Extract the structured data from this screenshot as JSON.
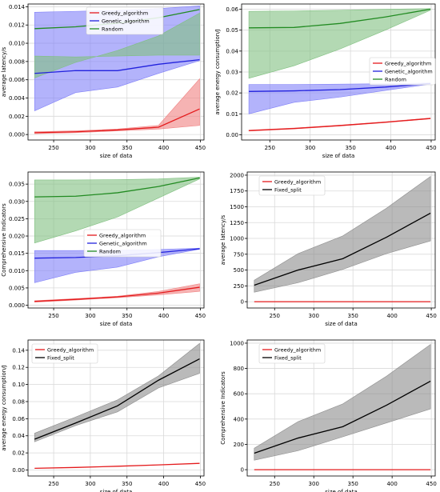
{
  "colors": {
    "greedy": "#e41a1c",
    "genetic": "#2222dd",
    "random": "#228b22",
    "fixed": "#000000",
    "band_greedy": "#f08080",
    "band_genetic": "#8080f8",
    "band_random": "#80c080",
    "band_fixed": "#8c8c8c",
    "grid": "#d9d9d9"
  },
  "chart_data": [
    {
      "type": "line",
      "grid": true,
      "legend": "top-center",
      "xlabel": "size of data",
      "ylabel": "average latency/s",
      "xlim": [
        215,
        455
      ],
      "ylim": [
        -0.0006,
        0.0143
      ],
      "xticks": [
        250,
        300,
        350,
        400,
        450
      ],
      "xtick_labels": [
        "250",
        "300",
        "350",
        "400",
        "450"
      ],
      "yticks": [
        0,
        0.002,
        0.004,
        0.006,
        0.008,
        0.01,
        0.012,
        0.014
      ],
      "ytick_labels": [
        "0.000",
        "0.002",
        "0.004",
        "0.006",
        "0.008",
        "0.010",
        "0.012",
        "0.014"
      ],
      "x": [
        224,
        280,
        337,
        393,
        449
      ],
      "series": [
        {
          "name": "Greedy_algorithm",
          "color_key": "greedy",
          "values": [
            0.0002,
            0.0003,
            0.0005,
            0.0008,
            0.0028
          ],
          "band_low": [
            0.0001,
            0.0002,
            0.0004,
            0.0006,
            0.001
          ],
          "band_high": [
            0.0003,
            0.0004,
            0.0006,
            0.001,
            0.0061
          ]
        },
        {
          "name": "Genetic_algorithm",
          "color_key": "genetic",
          "values": [
            0.0067,
            0.007,
            0.007,
            0.0077,
            0.0082
          ],
          "band_low": [
            0.0026,
            0.0046,
            0.0052,
            0.0067,
            0.0081
          ],
          "band_high": [
            0.0134,
            0.0135,
            0.0136,
            0.0138,
            0.0141
          ]
        },
        {
          "name": "Random",
          "color_key": "random",
          "values": [
            0.0116,
            0.0118,
            0.0122,
            0.0128,
            0.0137
          ],
          "band_low": [
            0.0062,
            0.0079,
            0.0092,
            0.0108,
            0.0133
          ],
          "band_high": [
            0.0086,
            0.0085,
            0.0086,
            0.0087,
            0.0087
          ]
        }
      ]
    },
    {
      "type": "line",
      "grid": true,
      "legend": "center-right",
      "xlabel": "size of data",
      "ylabel": "average energy consumption/J",
      "xlim": [
        215,
        455
      ],
      "ylim": [
        -0.0025,
        0.0625
      ],
      "xticks": [
        250,
        300,
        350,
        400,
        450
      ],
      "xtick_labels": [
        "250",
        "300",
        "350",
        "400",
        "450"
      ],
      "yticks": [
        0,
        0.01,
        0.02,
        0.03,
        0.04,
        0.05,
        0.06
      ],
      "ytick_labels": [
        "0.00",
        "0.01",
        "0.02",
        "0.03",
        "0.04",
        "0.05",
        "0.06"
      ],
      "x": [
        224,
        280,
        337,
        393,
        449
      ],
      "series": [
        {
          "name": "Greedy_algorithm",
          "color_key": "greedy",
          "values": [
            0.002,
            0.003,
            0.0044,
            0.006,
            0.0078
          ],
          "band_low": [
            0.0018,
            0.0028,
            0.0042,
            0.0058,
            0.0076
          ],
          "band_high": [
            0.0022,
            0.0032,
            0.0046,
            0.0062,
            0.008
          ]
        },
        {
          "name": "Genetic_algorithm",
          "color_key": "genetic",
          "values": [
            0.0207,
            0.021,
            0.0216,
            0.0228,
            0.0245
          ],
          "band_low": [
            0.01,
            0.0155,
            0.018,
            0.0212,
            0.0242
          ],
          "band_high": [
            0.024,
            0.024,
            0.0242,
            0.0244,
            0.0247
          ]
        },
        {
          "name": "Random",
          "color_key": "random",
          "values": [
            0.0511,
            0.0513,
            0.0532,
            0.0563,
            0.06
          ],
          "band_low": [
            0.027,
            0.033,
            0.041,
            0.05,
            0.0595
          ],
          "band_high": [
            0.059,
            0.0592,
            0.0595,
            0.06,
            0.0603
          ]
        }
      ]
    },
    {
      "type": "line",
      "grid": true,
      "legend": "center-left",
      "xlabel": "size of data",
      "ylabel": "Comprehensive Indicators",
      "xlim": [
        215,
        455
      ],
      "ylim": [
        -0.0008,
        0.0385
      ],
      "xticks": [
        250,
        300,
        350,
        400,
        450
      ],
      "xtick_labels": [
        "250",
        "300",
        "350",
        "400",
        "450"
      ],
      "yticks": [
        0,
        0.005,
        0.01,
        0.015,
        0.02,
        0.025,
        0.03,
        0.035
      ],
      "ytick_labels": [
        "0.000",
        "0.005",
        "0.010",
        "0.015",
        "0.020",
        "0.025",
        "0.030",
        "0.035"
      ],
      "x": [
        224,
        280,
        337,
        393,
        449
      ],
      "series": [
        {
          "name": "Greedy_algorithm",
          "color_key": "greedy",
          "values": [
            0.0011,
            0.0017,
            0.0024,
            0.0035,
            0.0052
          ],
          "band_low": [
            0.0009,
            0.0015,
            0.0022,
            0.003,
            0.004
          ],
          "band_high": [
            0.0013,
            0.0019,
            0.0026,
            0.004,
            0.0062
          ]
        },
        {
          "name": "Genetic_algorithm",
          "color_key": "genetic",
          "values": [
            0.0136,
            0.0138,
            0.0143,
            0.0152,
            0.0163
          ],
          "band_low": [
            0.0065,
            0.0095,
            0.011,
            0.014,
            0.0162
          ],
          "band_high": [
            0.0158,
            0.0158,
            0.0159,
            0.0161,
            0.0165
          ]
        },
        {
          "name": "Random",
          "color_key": "random",
          "values": [
            0.0313,
            0.0315,
            0.0325,
            0.0343,
            0.0368
          ],
          "band_low": [
            0.018,
            0.0215,
            0.0255,
            0.031,
            0.0365
          ],
          "band_high": [
            0.0362,
            0.0362,
            0.0363,
            0.0365,
            0.037
          ]
        }
      ]
    },
    {
      "type": "line",
      "grid": true,
      "legend": "top-left",
      "xlabel": "size of data",
      "ylabel": "average latency/s",
      "xlim": [
        215,
        455
      ],
      "ylim": [
        -100,
        2050
      ],
      "xticks": [
        250,
        300,
        350,
        400,
        450
      ],
      "xtick_labels": [
        "250",
        "300",
        "350",
        "400",
        "450"
      ],
      "yticks": [
        0,
        250,
        500,
        750,
        1000,
        1250,
        1500,
        1750,
        2000
      ],
      "ytick_labels": [
        "0",
        "250",
        "500",
        "750",
        "1000",
        "1250",
        "1500",
        "1750",
        "2000"
      ],
      "x": [
        224,
        280,
        337,
        393,
        449
      ],
      "series": [
        {
          "name": "Greedy_algorithm",
          "color_key": "greedy",
          "values": [
            0,
            0,
            0,
            0,
            0
          ]
        },
        {
          "name": "Fixed_split",
          "color_key": "fixed",
          "values": [
            260,
            500,
            680,
            1020,
            1400
          ],
          "band_low": [
            150,
            300,
            510,
            760,
            960
          ],
          "band_high": [
            340,
            760,
            1040,
            1480,
            1980
          ]
        }
      ]
    },
    {
      "type": "line",
      "grid": true,
      "legend": "top-left",
      "xlabel": "size of data",
      "ylabel": "average energy consumption/J",
      "xlim": [
        215,
        455
      ],
      "ylim": [
        -0.007,
        0.152
      ],
      "xticks": [
        250,
        300,
        350,
        400,
        450
      ],
      "xtick_labels": [
        "250",
        "300",
        "350",
        "400",
        "450"
      ],
      "yticks": [
        0,
        0.02,
        0.04,
        0.06,
        0.08,
        0.1,
        0.12,
        0.14
      ],
      "ytick_labels": [
        "0.00",
        "0.02",
        "0.04",
        "0.06",
        "0.08",
        "0.10",
        "0.12",
        "0.14"
      ],
      "x": [
        224,
        280,
        337,
        393,
        449
      ],
      "series": [
        {
          "name": "Greedy_algorithm",
          "color_key": "greedy",
          "values": [
            0.002,
            0.003,
            0.0044,
            0.006,
            0.0078
          ]
        },
        {
          "name": "Fixed_split",
          "color_key": "fixed",
          "values": [
            0.036,
            0.055,
            0.075,
            0.105,
            0.13
          ],
          "band_low": [
            0.033,
            0.052,
            0.068,
            0.096,
            0.113
          ],
          "band_high": [
            0.043,
            0.062,
            0.082,
            0.11,
            0.148
          ]
        }
      ]
    },
    {
      "type": "line",
      "grid": true,
      "legend": "top-left",
      "xlabel": "size of data",
      "ylabel": "Comprehensive Indicators",
      "xlim": [
        215,
        455
      ],
      "ylim": [
        -50,
        1025
      ],
      "xticks": [
        250,
        300,
        350,
        400,
        450
      ],
      "xtick_labels": [
        "250",
        "300",
        "350",
        "400",
        "450"
      ],
      "yticks": [
        0,
        200,
        400,
        600,
        800,
        1000
      ],
      "ytick_labels": [
        "0",
        "200",
        "400",
        "600",
        "800",
        "1000"
      ],
      "x": [
        224,
        280,
        337,
        393,
        449
      ],
      "series": [
        {
          "name": "Greedy_algorithm",
          "color_key": "greedy",
          "values": [
            0,
            0,
            0,
            0,
            0
          ]
        },
        {
          "name": "Fixed_split",
          "color_key": "fixed",
          "values": [
            130,
            250,
            340,
            510,
            700
          ],
          "band_low": [
            75,
            150,
            260,
            370,
            480
          ],
          "band_high": [
            170,
            380,
            520,
            740,
            990
          ]
        }
      ]
    }
  ]
}
